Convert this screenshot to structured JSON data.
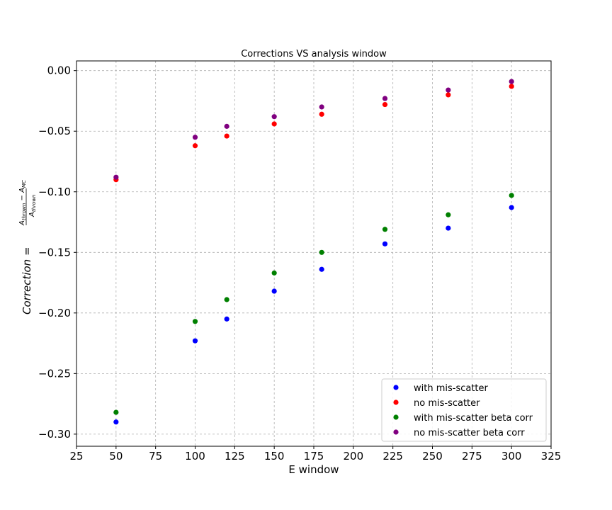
{
  "chart_data": {
    "type": "scatter",
    "title": "Corrections VS analysis window",
    "xlabel": "E window",
    "ylabel": {
      "main": "Correction = ",
      "numerator_a": "A",
      "numerator_a_sub": "thrown",
      "minus": " − ",
      "numerator_b": "A",
      "numerator_b_sub": "MC",
      "denominator": "A",
      "denominator_sub": "thrown"
    },
    "xlim": [
      25,
      325
    ],
    "ylim": [
      -0.31,
      0.008
    ],
    "x_ticks": [
      25,
      50,
      75,
      100,
      125,
      150,
      175,
      200,
      225,
      250,
      275,
      300,
      325
    ],
    "y_ticks": [
      0.0,
      -0.05,
      -0.1,
      -0.15,
      -0.2,
      -0.25,
      -0.3
    ],
    "y_tick_labels": [
      "0.00",
      "−0.05",
      "−0.10",
      "−0.15",
      "−0.20",
      "−0.25",
      "−0.30"
    ],
    "grid": true,
    "legend_position": "lower-right",
    "x": [
      50,
      100,
      120,
      150,
      180,
      220,
      260,
      300
    ],
    "series": [
      {
        "name": "with mis-scatter",
        "color": "#0000ff",
        "values": [
          -0.29,
          -0.223,
          -0.205,
          -0.182,
          -0.164,
          -0.143,
          -0.13,
          -0.113
        ]
      },
      {
        "name": "no mis-scatter",
        "color": "#ff0000",
        "values": [
          -0.09,
          -0.062,
          -0.054,
          -0.044,
          -0.036,
          -0.028,
          -0.02,
          -0.013
        ]
      },
      {
        "name": "with mis-scatter beta corr",
        "color": "#008000",
        "values": [
          -0.282,
          -0.207,
          -0.189,
          -0.167,
          -0.15,
          -0.131,
          -0.119,
          -0.103
        ]
      },
      {
        "name": "no mis-scatter beta corr",
        "color": "#800080",
        "values": [
          -0.088,
          -0.055,
          -0.046,
          -0.038,
          -0.03,
          -0.023,
          -0.016,
          -0.009
        ]
      }
    ]
  }
}
